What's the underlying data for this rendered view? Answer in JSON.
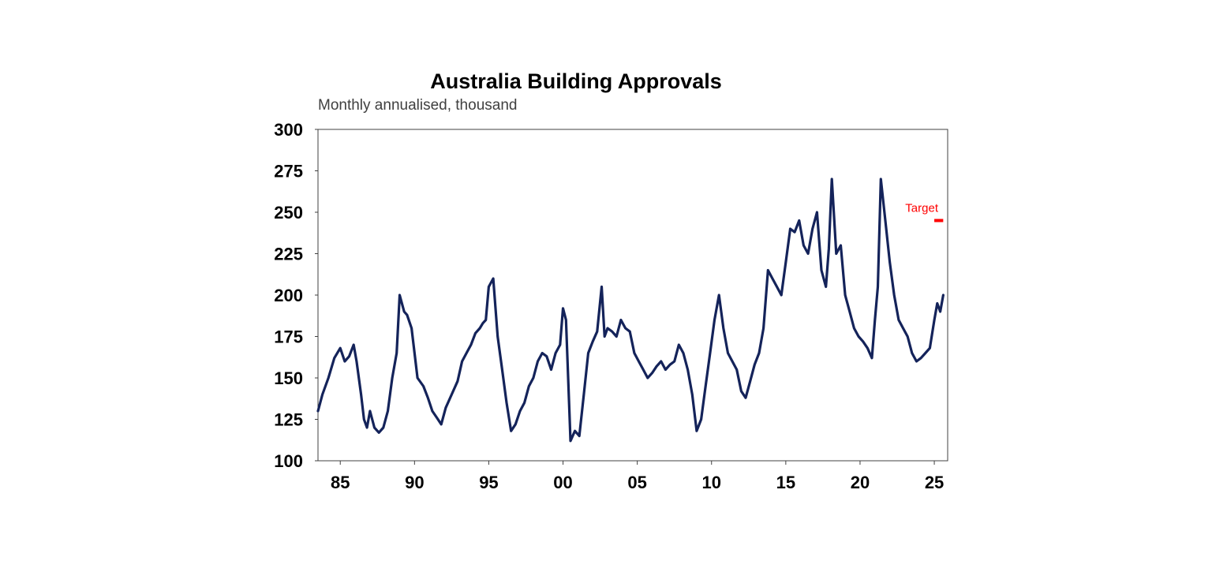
{
  "chart_data": {
    "type": "line",
    "title": "Australia Building Approvals",
    "subtitle": "Monthly annualised, thousand",
    "xlabel": "",
    "ylabel": "",
    "xlim": [
      1983.5,
      2025.9
    ],
    "ylim": [
      100,
      300
    ],
    "y_ticks": [
      100,
      125,
      150,
      175,
      200,
      225,
      250,
      275,
      300
    ],
    "x_ticks": [
      1985,
      1990,
      1995,
      2000,
      2005,
      2010,
      2015,
      2020,
      2025
    ],
    "x_tick_labels": [
      "85",
      "90",
      "95",
      "00",
      "05",
      "10",
      "15",
      "20",
      "25"
    ],
    "grid": false,
    "series_color": "#14235a",
    "series": [
      {
        "x": [
          1983.5,
          1983.8,
          1984.2,
          1984.6,
          1985.0,
          1985.3,
          1985.6,
          1985.9,
          1986.1,
          1986.4,
          1986.6,
          1986.8,
          1987.0,
          1987.3,
          1987.6,
          1987.9,
          1988.2,
          1988.5,
          1988.8,
          1989.0,
          1989.3,
          1989.5,
          1989.8,
          1990.2,
          1990.6,
          1990.9,
          1991.2,
          1991.5,
          1991.8,
          1992.1,
          1992.5,
          1992.9,
          1993.2,
          1993.5,
          1993.8,
          1994.1,
          1994.4,
          1994.6,
          1994.8,
          1995.0,
          1995.3,
          1995.6,
          1995.9,
          1996.2,
          1996.5,
          1996.8,
          1997.1,
          1997.4,
          1997.7,
          1998.0,
          1998.3,
          1998.6,
          1998.9,
          1999.2,
          1999.5,
          1999.8,
          2000.0,
          2000.2,
          2000.5,
          2000.8,
          2001.1,
          2001.4,
          2001.7,
          2002.0,
          2002.3,
          2002.6,
          2002.8,
          2003.0,
          2003.3,
          2003.6,
          2003.9,
          2004.2,
          2004.5,
          2004.8,
          2005.1,
          2005.4,
          2005.7,
          2006.0,
          2006.3,
          2006.6,
          2006.9,
          2007.2,
          2007.5,
          2007.8,
          2008.1,
          2008.4,
          2008.7,
          2009.0,
          2009.3,
          2009.6,
          2009.9,
          2010.2,
          2010.5,
          2010.8,
          2011.1,
          2011.4,
          2011.7,
          2012.0,
          2012.3,
          2012.6,
          2012.9,
          2013.2,
          2013.5,
          2013.8,
          2014.1,
          2014.4,
          2014.7,
          2015.0,
          2015.3,
          2015.6,
          2015.9,
          2016.2,
          2016.5,
          2016.8,
          2017.1,
          2017.4,
          2017.7,
          2017.9,
          2018.1,
          2018.4,
          2018.7,
          2019.0,
          2019.3,
          2019.6,
          2019.9,
          2020.2,
          2020.5,
          2020.8,
          2021.0,
          2021.2,
          2021.4,
          2021.7,
          2022.0,
          2022.3,
          2022.6,
          2022.9,
          2023.2,
          2023.5,
          2023.8,
          2024.1,
          2024.4,
          2024.7,
          2025.0,
          2025.2,
          2025.4,
          2025.6
        ],
        "values": [
          130,
          140,
          150,
          162,
          168,
          160,
          163,
          170,
          160,
          140,
          125,
          120,
          130,
          120,
          117,
          120,
          130,
          150,
          165,
          200,
          190,
          188,
          180,
          150,
          145,
          138,
          130,
          126,
          122,
          132,
          140,
          148,
          160,
          165,
          170,
          177,
          180,
          183,
          185,
          205,
          210,
          175,
          155,
          135,
          118,
          122,
          130,
          135,
          145,
          150,
          160,
          165,
          163,
          155,
          165,
          170,
          192,
          185,
          112,
          118,
          115,
          140,
          165,
          172,
          178,
          205,
          175,
          180,
          178,
          175,
          185,
          180,
          178,
          165,
          160,
          155,
          150,
          153,
          157,
          160,
          155,
          158,
          160,
          170,
          165,
          155,
          140,
          118,
          125,
          145,
          165,
          185,
          200,
          180,
          165,
          160,
          155,
          142,
          138,
          148,
          158,
          165,
          180,
          215,
          210,
          205,
          200,
          220,
          240,
          238,
          245,
          230,
          225,
          240,
          250,
          215,
          205,
          228,
          270,
          225,
          230,
          200,
          190,
          180,
          175,
          172,
          168,
          162,
          185,
          205,
          270,
          245,
          220,
          200,
          185,
          180,
          175,
          165,
          160,
          162,
          165,
          168,
          185,
          195,
          190,
          200
        ]
      }
    ],
    "annotations": [
      {
        "text": "Target",
        "value": 245,
        "x_from": 2025.0,
        "x_to": 2025.6,
        "color": "#ff0000"
      }
    ]
  }
}
